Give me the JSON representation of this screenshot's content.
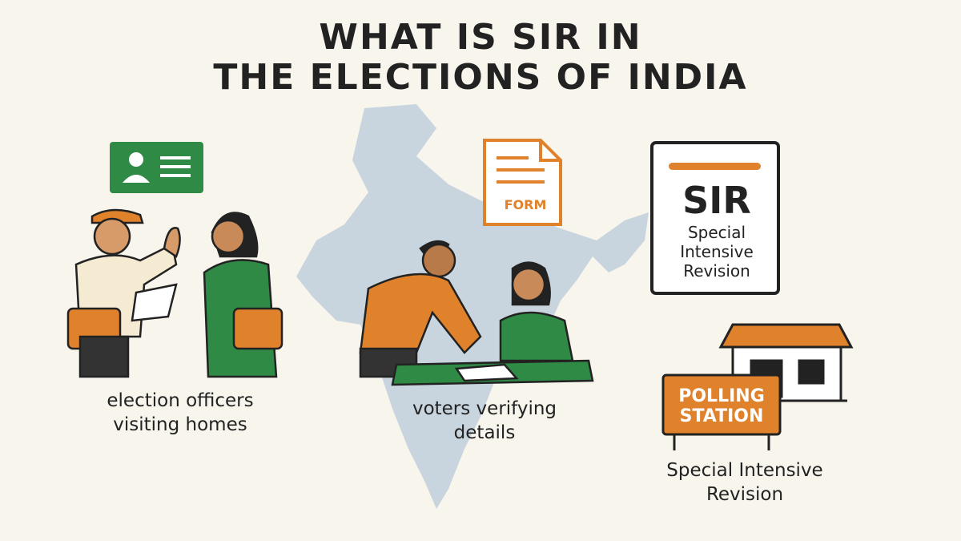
{
  "title": {
    "line1": "WHAT IS SIR IN",
    "line2": "THE ELECTIONS OF INDIA"
  },
  "captions": {
    "officers": {
      "line1": "election officers",
      "line2": "visiting homes"
    },
    "voters": {
      "line1": "voters verifying",
      "line2": "details"
    },
    "revision": {
      "line1": "Special Intensive",
      "line2": "Revision"
    }
  },
  "form_label": "FORM",
  "sir_card": {
    "abbr": "SIR",
    "line1": "Special",
    "line2": "Intensive",
    "line3": "Revision"
  },
  "polling_sign": {
    "line1": "POLLING",
    "line2": "STATION"
  },
  "colors": {
    "background": "#f8f5ec",
    "orange": "#e0822c",
    "green": "#2f8a45",
    "map": "#c9d5de",
    "ink": "#222222"
  },
  "icons": [
    "id-card-icon",
    "form-document-icon",
    "india-map",
    "polling-station-house-icon"
  ]
}
